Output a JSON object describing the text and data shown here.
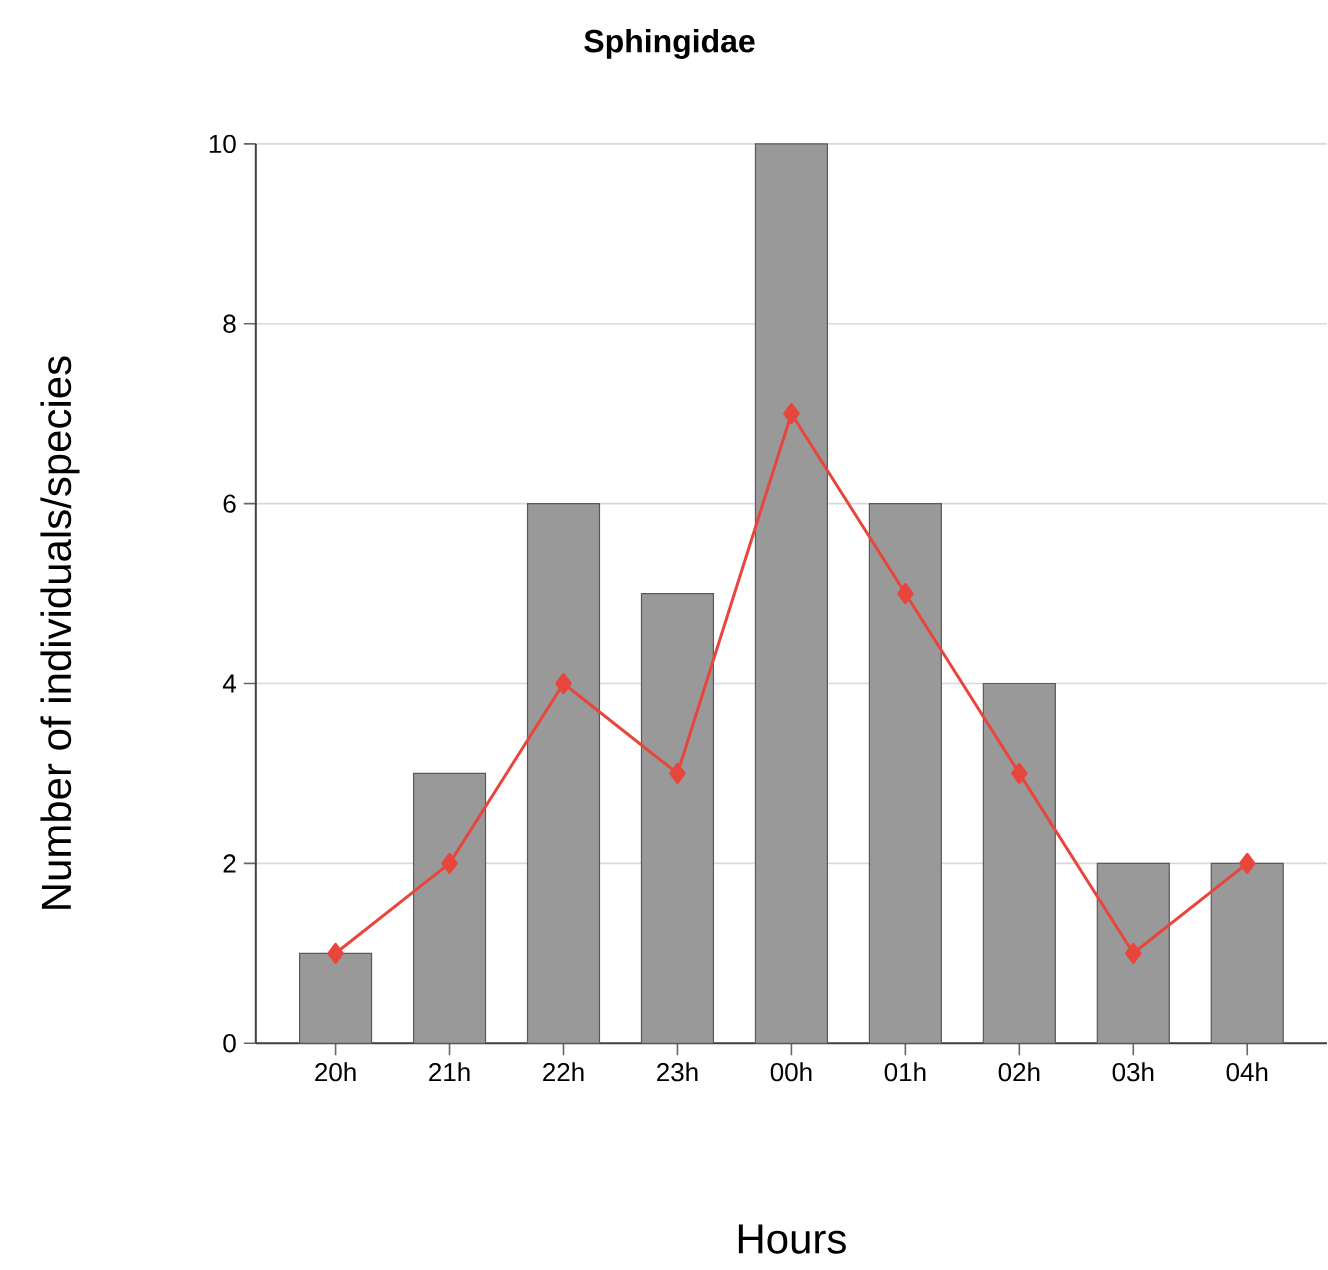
{
  "chart_data": {
    "type": "bar",
    "title": "Sphingidae",
    "xlabel": "Hours",
    "ylabel": "Number of individuals/species",
    "categories": [
      "20h",
      "21h",
      "22h",
      "23h",
      "00h",
      "01h",
      "02h",
      "03h",
      "04h"
    ],
    "series": [
      {
        "color": "#999999",
        "values": [
          1,
          3,
          6,
          5,
          10,
          6,
          4,
          2,
          2
        ]
      },
      {
        "type": "line",
        "color": "#e8453c",
        "values": [
          1,
          2,
          4,
          3,
          7,
          5,
          3,
          1,
          2
        ]
      }
    ],
    "ylim": [
      0,
      10
    ],
    "yticks": [
      0,
      2,
      4,
      6,
      8,
      10
    ],
    "grid": "y",
    "marker": "diamond",
    "line_style": "solid"
  }
}
